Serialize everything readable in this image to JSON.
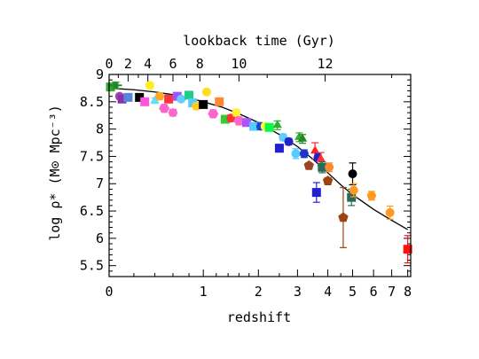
{
  "chart_data": {
    "type": "scatter",
    "title": "",
    "xlabel": "redshift",
    "ylabel": "log ρ* (M⊙ Mpc⁻³)",
    "x2label": "lookback time (Gyr)",
    "x_scale": "log(1+z)",
    "xlim": [
      0,
      8.2
    ],
    "ylim": [
      5.3,
      9
    ],
    "x_ticks": [
      0,
      1,
      2,
      3,
      4,
      5,
      6,
      7,
      8
    ],
    "y_ticks": [
      5.5,
      6,
      6.5,
      7,
      7.5,
      8,
      8.5,
      9
    ],
    "x2_ticks": [
      {
        "label": "0",
        "z": 0
      },
      {
        "label": "2",
        "z": 0.15
      },
      {
        "label": "4",
        "z": 0.33
      },
      {
        "label": "6",
        "z": 0.6
      },
      {
        "label": "8",
        "z": 0.95
      },
      {
        "label": "10",
        "z": 1.6
      },
      {
        "label": "12",
        "z": 3.9
      }
    ],
    "fit_curve": {
      "z": [
        0,
        0.2,
        0.4,
        0.6,
        0.8,
        1.0,
        1.3,
        1.6,
        2.0,
        2.5,
        3.0,
        3.5,
        4.0,
        4.5,
        5.0,
        6.0,
        7.0,
        8.0
      ],
      "log_rho": [
        8.75,
        8.72,
        8.68,
        8.63,
        8.57,
        8.5,
        8.4,
        8.28,
        8.12,
        7.9,
        7.68,
        7.44,
        7.2,
        6.98,
        6.8,
        6.53,
        6.33,
        6.16
      ]
    },
    "points": [
      {
        "z": 0.01,
        "y": 8.77,
        "color": "#33aa33",
        "marker": "square",
        "err": 0.05
      },
      {
        "z": 0.05,
        "y": 8.8,
        "color": "#228822",
        "marker": "cross",
        "err": 0.06
      },
      {
        "z": 0.08,
        "y": 8.6,
        "color": "#aa44aa",
        "marker": "circle",
        "err": 0.05
      },
      {
        "z": 0.1,
        "y": 8.55,
        "color": "#8833aa",
        "marker": "square",
        "err": 0.05
      },
      {
        "z": 0.15,
        "y": 8.58,
        "color": "#5588dd",
        "marker": "square",
        "err": 0.05
      },
      {
        "z": 0.25,
        "y": 8.58,
        "color": "#000000",
        "marker": "square",
        "err": 0.05
      },
      {
        "z": 0.3,
        "y": 8.5,
        "color": "#ff55dd",
        "marker": "square",
        "err": 0.06
      },
      {
        "z": 0.35,
        "y": 8.8,
        "color": "#ffee22",
        "marker": "circle",
        "err": 0.05
      },
      {
        "z": 0.4,
        "y": 8.52,
        "color": "#66ddff",
        "marker": "triangle",
        "err": 0.05
      },
      {
        "z": 0.45,
        "y": 8.6,
        "color": "#ffaa22",
        "marker": "circle",
        "err": 0.06
      },
      {
        "z": 0.5,
        "y": 8.38,
        "color": "#ff66cc",
        "marker": "hexagon",
        "err": 0.06
      },
      {
        "z": 0.55,
        "y": 8.55,
        "color": "#ff3333",
        "marker": "square",
        "err": 0.05
      },
      {
        "z": 0.6,
        "y": 8.3,
        "color": "#ff66cc",
        "marker": "circle",
        "err": 0.06
      },
      {
        "z": 0.65,
        "y": 8.6,
        "color": "#9955ff",
        "marker": "square",
        "err": 0.05
      },
      {
        "z": 0.7,
        "y": 8.55,
        "color": "#66ccff",
        "marker": "circle",
        "err": 0.05
      },
      {
        "z": 0.8,
        "y": 8.62,
        "color": "#22cc88",
        "marker": "square",
        "err": 0.05
      },
      {
        "z": 0.85,
        "y": 8.48,
        "color": "#55ccff",
        "marker": "square",
        "err": 0.05
      },
      {
        "z": 0.9,
        "y": 8.42,
        "color": "#ffcc22",
        "marker": "circle",
        "err": 0.06
      },
      {
        "z": 1.0,
        "y": 8.45,
        "color": "#000000",
        "marker": "square",
        "err": 0.05
      },
      {
        "z": 1.05,
        "y": 8.68,
        "color": "#ffdd22",
        "marker": "circle",
        "err": 0.05
      },
      {
        "z": 1.15,
        "y": 8.28,
        "color": "#ff66cc",
        "marker": "hexagon",
        "err": 0.06
      },
      {
        "z": 1.25,
        "y": 8.5,
        "color": "#ff8833",
        "marker": "square",
        "err": 0.05
      },
      {
        "z": 1.35,
        "y": 8.18,
        "color": "#33cc33",
        "marker": "square",
        "err": 0.06
      },
      {
        "z": 1.45,
        "y": 8.2,
        "color": "#ff3333",
        "marker": "circle",
        "err": 0.06
      },
      {
        "z": 1.55,
        "y": 8.3,
        "color": "#ffee33",
        "marker": "circle",
        "err": 0.06
      },
      {
        "z": 1.6,
        "y": 8.15,
        "color": "#ff66cc",
        "marker": "hexagon",
        "err": 0.06
      },
      {
        "z": 1.75,
        "y": 8.12,
        "color": "#aa55ff",
        "marker": "square",
        "err": 0.06
      },
      {
        "z": 1.9,
        "y": 8.05,
        "color": "#55ccff",
        "marker": "square",
        "err": 0.06
      },
      {
        "z": 2.05,
        "y": 8.05,
        "color": "#2244cc",
        "marker": "circle",
        "err": 0.06
      },
      {
        "z": 2.15,
        "y": 8.05,
        "color": "#ffff33",
        "marker": "circle",
        "err": 0.05
      },
      {
        "z": 2.25,
        "y": 8.03,
        "color": "#00ff44",
        "marker": "square",
        "err": 0.05
      },
      {
        "z": 2.45,
        "y": 8.07,
        "color": "#33aa33",
        "marker": "triangle",
        "err": 0.08
      },
      {
        "z": 2.5,
        "y": 7.65,
        "color": "#2222cc",
        "marker": "square",
        "err": 0.07
      },
      {
        "z": 2.6,
        "y": 7.85,
        "color": "#66ccff",
        "marker": "circle",
        "err": 0.06
      },
      {
        "z": 2.75,
        "y": 7.77,
        "color": "#2222cc",
        "marker": "circle",
        "err": 0.06
      },
      {
        "z": 2.95,
        "y": 7.55,
        "color": "#55ccff",
        "marker": "circle",
        "err": 0.09
      },
      {
        "z": 3.05,
        "y": 7.85,
        "color": "#33aa33",
        "marker": "triangle",
        "err": 0.08
      },
      {
        "z": 3.15,
        "y": 7.82,
        "color": "#228822",
        "marker": "triangle",
        "err": 0.08
      },
      {
        "z": 3.2,
        "y": 7.55,
        "color": "#2233cc",
        "marker": "circle",
        "err": 0.07
      },
      {
        "z": 3.35,
        "y": 7.33,
        "color": "#994422",
        "marker": "pentagon",
        "err": 0.05
      },
      {
        "z": 3.55,
        "y": 7.6,
        "color": "#ff2222",
        "marker": "triangle",
        "err": 0.15
      },
      {
        "z": 3.6,
        "y": 6.84,
        "color": "#2222cc",
        "marker": "square",
        "err": 0.18
      },
      {
        "z": 3.65,
        "y": 7.48,
        "color": "#2222cc",
        "marker": "circle",
        "err": 0.07
      },
      {
        "z": 3.75,
        "y": 7.45,
        "color": "#ff3333",
        "marker": "triangle",
        "err": 0.12
      },
      {
        "z": 3.8,
        "y": 7.3,
        "color": "#2a6a5a",
        "marker": "square",
        "err": 0.1
      },
      {
        "z": 4.0,
        "y": 7.05,
        "color": "#994411",
        "marker": "pentagon",
        "err": 0.06
      },
      {
        "z": 4.05,
        "y": 7.3,
        "color": "#ff8833",
        "marker": "circle",
        "err": 0.08
      },
      {
        "z": 4.6,
        "y": 6.38,
        "color": "#994411",
        "marker": "pentagon",
        "err": 0.55
      },
      {
        "z": 4.95,
        "y": 6.75,
        "color": "#2a6a5a",
        "marker": "square",
        "err": 0.15
      },
      {
        "z": 5.0,
        "y": 7.18,
        "color": "#000000",
        "marker": "circle",
        "err": 0.2
      },
      {
        "z": 5.05,
        "y": 6.88,
        "color": "#ff9922",
        "marker": "circle",
        "err": 0.12
      },
      {
        "z": 5.9,
        "y": 6.78,
        "color": "#ff9922",
        "marker": "circle",
        "err": 0.08
      },
      {
        "z": 6.9,
        "y": 6.47,
        "color": "#ff9922",
        "marker": "circle",
        "err": 0.12
      },
      {
        "z": 8.0,
        "y": 5.8,
        "color": "#ff1111",
        "marker": "square",
        "err": 0.25
      }
    ]
  }
}
